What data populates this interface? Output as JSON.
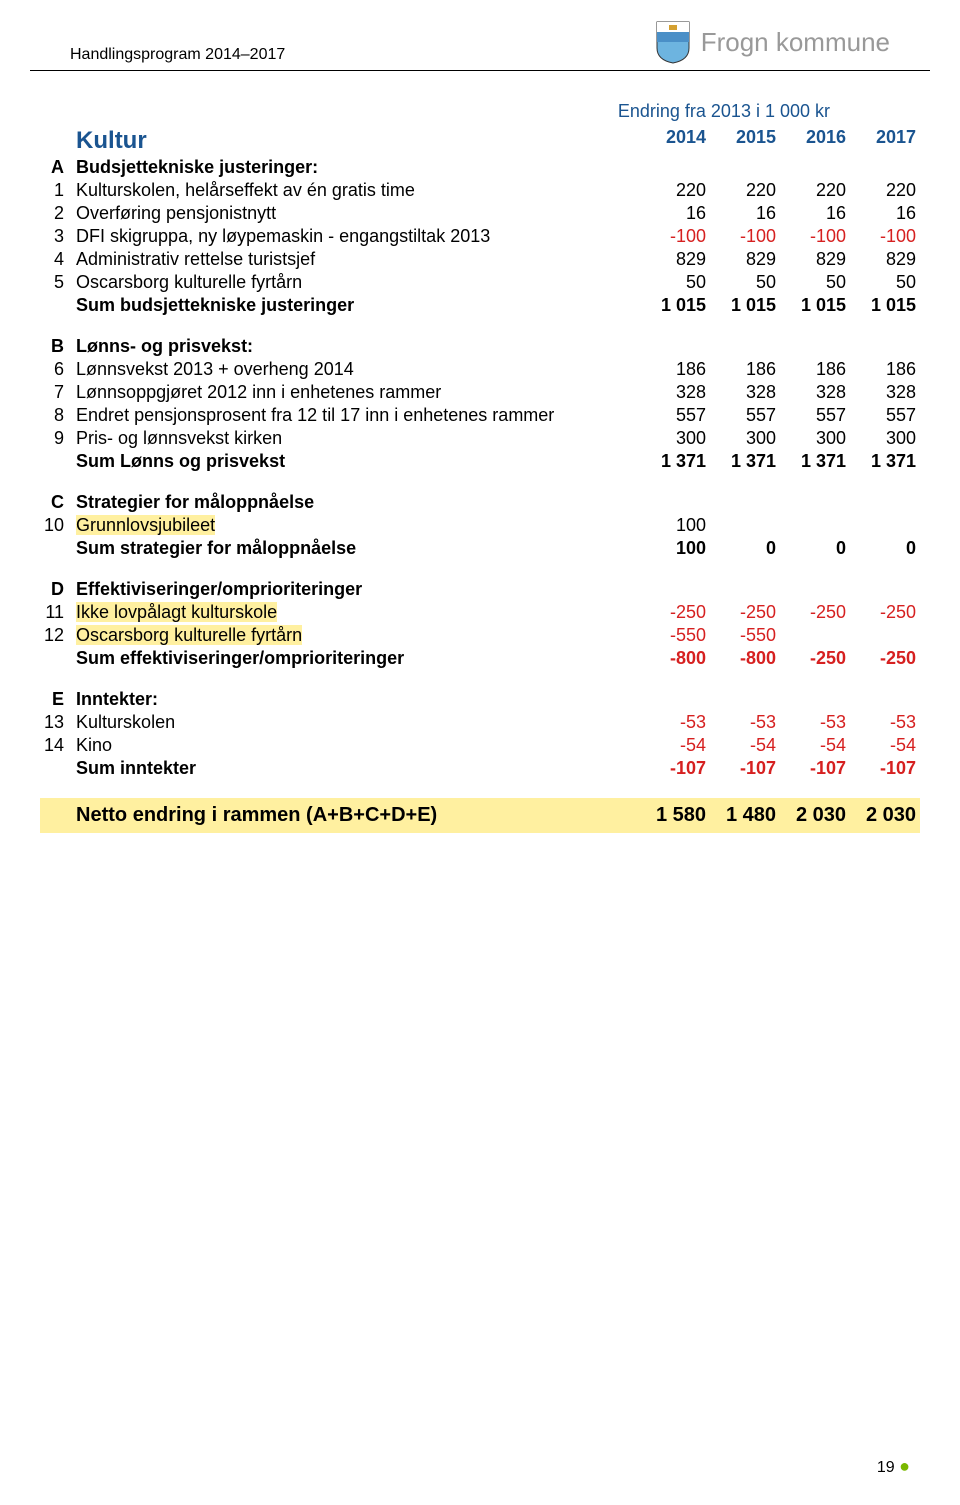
{
  "header": {
    "doc_title": "Handlingsprogram 2014–2017",
    "kommune": "Frogn kommune"
  },
  "subtitle": "Endring fra 2013 i 1 000 kr",
  "table_header": {
    "title": "Kultur",
    "years": [
      "2014",
      "2015",
      "2016",
      "2017"
    ]
  },
  "sections": {
    "A": {
      "letter": "A",
      "title": "Budsjettekniske justeringer:",
      "rows": [
        {
          "idx": "1",
          "desc": "Kulturskolen, helårseffekt av én gratis time",
          "v": [
            "220",
            "220",
            "220",
            "220"
          ]
        },
        {
          "idx": "2",
          "desc": "Overføring pensjonistnytt",
          "v": [
            "16",
            "16",
            "16",
            "16"
          ]
        },
        {
          "idx": "3",
          "desc": "DFI skigruppa, ny løypemaskin - engangstiltak 2013",
          "v": [
            "-100",
            "-100",
            "-100",
            "-100"
          ]
        },
        {
          "idx": "4",
          "desc": "Administrativ rettelse turistsjef",
          "v": [
            "829",
            "829",
            "829",
            "829"
          ]
        },
        {
          "idx": "5",
          "desc": "Oscarsborg kulturelle fyrtårn",
          "v": [
            "50",
            "50",
            "50",
            "50"
          ]
        }
      ],
      "sum": {
        "desc": "Sum budsjettekniske justeringer",
        "v": [
          "1 015",
          "1 015",
          "1 015",
          "1 015"
        ]
      }
    },
    "B": {
      "letter": "B",
      "title": "Lønns- og prisvekst:",
      "rows": [
        {
          "idx": "6",
          "desc": "Lønnsvekst 2013 + overheng 2014",
          "v": [
            "186",
            "186",
            "186",
            "186"
          ]
        },
        {
          "idx": "7",
          "desc": "Lønnsoppgjøret 2012 inn i enhetenes rammer",
          "v": [
            "328",
            "328",
            "328",
            "328"
          ]
        },
        {
          "idx": "8",
          "desc": "Endret pensjonsprosent fra 12 til 17 inn i enhetenes rammer",
          "v": [
            "557",
            "557",
            "557",
            "557"
          ]
        },
        {
          "idx": "9",
          "desc": "Pris- og lønnsvekst kirken",
          "v": [
            "300",
            "300",
            "300",
            "300"
          ]
        }
      ],
      "sum": {
        "desc": "Sum Lønns og prisvekst",
        "v": [
          "1 371",
          "1 371",
          "1 371",
          "1 371"
        ]
      }
    },
    "C": {
      "letter": "C",
      "title": "Strategier for måloppnåelse",
      "rows": [
        {
          "idx": "10",
          "desc": "Grunnlovsjubileet",
          "hl": true,
          "v": [
            "100",
            "",
            "",
            ""
          ]
        }
      ],
      "sum": {
        "desc": "Sum strategier for måloppnåelse",
        "v": [
          "100",
          "0",
          "0",
          "0"
        ]
      }
    },
    "D": {
      "letter": "D",
      "title": "Effektiviseringer/omprioriteringer",
      "rows": [
        {
          "idx": "11",
          "desc": "Ikke lovpålagt kulturskole",
          "hl": true,
          "v": [
            "-250",
            "-250",
            "-250",
            "-250"
          ]
        },
        {
          "idx": "12",
          "desc": "Oscarsborg kulturelle fyrtårn",
          "hl": true,
          "v": [
            "-550",
            "-550",
            "",
            ""
          ]
        }
      ],
      "sum": {
        "desc": "Sum effektiviseringer/omprioriteringer",
        "v": [
          "-800",
          "-800",
          "-250",
          "-250"
        ]
      }
    },
    "E": {
      "letter": "E",
      "title": "Inntekter:",
      "rows": [
        {
          "idx": "13",
          "desc": "Kulturskolen",
          "v": [
            "-53",
            "-53",
            "-53",
            "-53"
          ]
        },
        {
          "idx": "14",
          "desc": "Kino",
          "v": [
            "-54",
            "-54",
            "-54",
            "-54"
          ]
        }
      ],
      "sum": {
        "desc": "Sum inntekter",
        "v": [
          "-107",
          "-107",
          "-107",
          "-107"
        ]
      }
    }
  },
  "total": {
    "desc": "Netto endring i rammen (A+B+C+D+E)",
    "v": [
      "1 580",
      "1 480",
      "2 030",
      "2 030"
    ]
  },
  "page_number": "19",
  "colors": {
    "blue": "#1a5490",
    "red": "#d62020",
    "highlight": "#fff0a0",
    "green": "#7ab800",
    "grey": "#999999"
  }
}
